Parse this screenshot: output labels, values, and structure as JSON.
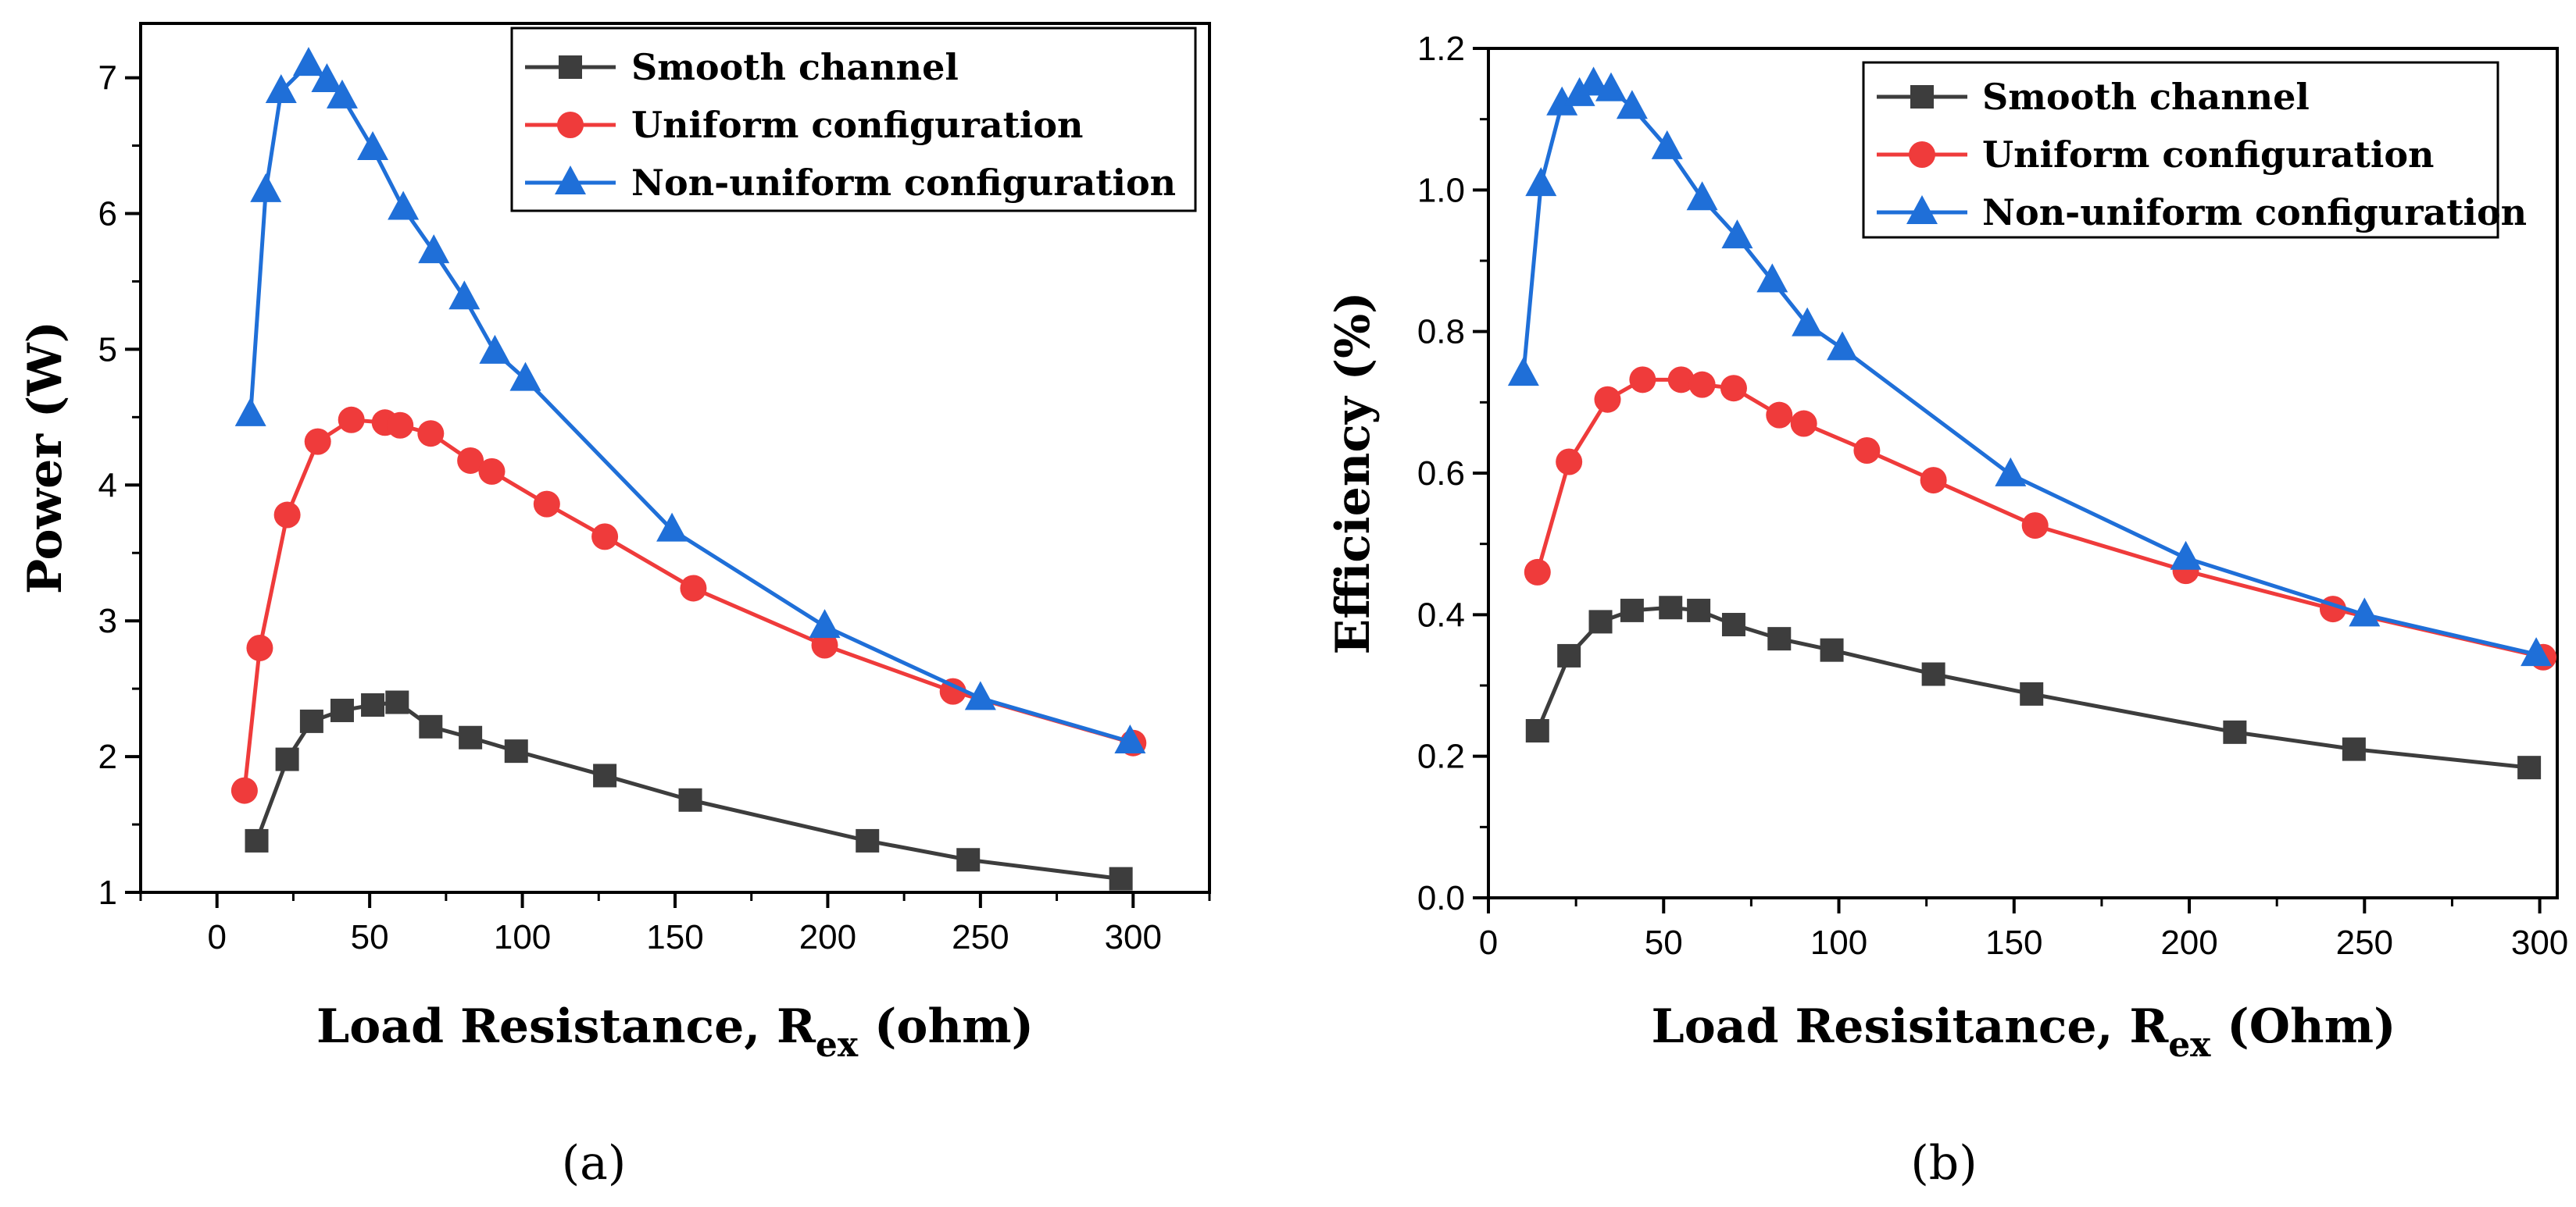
{
  "colors": {
    "smooth": "#3d3d3d",
    "uniform": "#ef3b3b",
    "nonuniform": "#1f6fd8"
  },
  "chart_data": [
    {
      "type": "line",
      "panel_label": "(a)",
      "title": "",
      "xlabel_main": "Load Resistance, R",
      "xlabel_sub": "ex",
      "xlabel_unit": " (ohm)",
      "ylabel": "Power (W)",
      "xlim": [
        -25,
        325
      ],
      "ylim": [
        1,
        7.4
      ],
      "xticks": [
        0,
        50,
        100,
        150,
        200,
        250,
        300
      ],
      "yticks": [
        1,
        2,
        3,
        4,
        5,
        6,
        7
      ],
      "xtick_labels": [
        "0",
        "50",
        "100",
        "150",
        "200",
        "250",
        "300"
      ],
      "ytick_labels": [
        "1",
        "2",
        "3",
        "4",
        "5",
        "6",
        "7"
      ],
      "legend_position": "top-right",
      "series": [
        {
          "name": "Smooth channel",
          "key": "smooth",
          "marker": "square",
          "x": [
            13,
            23,
            31,
            41,
            51,
            59,
            70,
            83,
            98,
            127,
            155,
            213,
            246,
            296
          ],
          "y": [
            1.38,
            1.98,
            2.26,
            2.34,
            2.38,
            2.4,
            2.22,
            2.14,
            2.04,
            1.86,
            1.68,
            1.38,
            1.24,
            1.1
          ]
        },
        {
          "name": "Uniform configuration",
          "key": "uniform",
          "marker": "circle",
          "x": [
            9,
            14,
            23,
            33,
            44,
            55,
            60,
            70,
            83,
            90,
            108,
            127,
            156,
            199,
            241,
            300
          ],
          "y": [
            1.75,
            2.8,
            3.78,
            4.32,
            4.48,
            4.46,
            4.44,
            4.38,
            4.18,
            4.1,
            3.86,
            3.62,
            3.24,
            2.82,
            2.48,
            2.1
          ]
        },
        {
          "name": "Non-uniform configuration",
          "key": "nonuniform",
          "marker": "triangle",
          "x": [
            11,
            16,
            21,
            30,
            36,
            41,
            51,
            61,
            71,
            81,
            91,
            101,
            149,
            199,
            250,
            299
          ],
          "y": [
            4.52,
            6.17,
            6.9,
            7.1,
            6.98,
            6.86,
            6.48,
            6.04,
            5.72,
            5.38,
            4.98,
            4.78,
            3.67,
            2.96,
            2.43,
            2.11
          ]
        }
      ]
    },
    {
      "type": "line",
      "panel_label": "(b)",
      "title": "",
      "xlabel_main": "Load Resisitance, R",
      "xlabel_sub": "ex",
      "xlabel_unit": " (Ohm)",
      "ylabel": "Efficiency (%)",
      "xlim": [
        0,
        305
      ],
      "ylim": [
        0,
        1.2
      ],
      "xticks": [
        0,
        50,
        100,
        150,
        200,
        250,
        300
      ],
      "yticks": [
        0,
        0.2,
        0.4,
        0.6,
        0.8,
        1.0,
        1.2
      ],
      "xtick_labels": [
        "0",
        "50",
        "100",
        "150",
        "200",
        "250",
        "300"
      ],
      "ytick_labels": [
        "0.0",
        "0.2",
        "0.4",
        "0.6",
        "0.8",
        "1.0",
        "1.2"
      ],
      "legend_position": "top-right",
      "series": [
        {
          "name": "Smooth channel",
          "key": "smooth",
          "marker": "square",
          "x": [
            14,
            23,
            32,
            41,
            52,
            60,
            70,
            83,
            98,
            127,
            155,
            213,
            247,
            297
          ],
          "y": [
            0.236,
            0.342,
            0.39,
            0.406,
            0.41,
            0.406,
            0.386,
            0.366,
            0.35,
            0.316,
            0.288,
            0.234,
            0.21,
            0.184
          ]
        },
        {
          "name": "Uniform configuration",
          "key": "uniform",
          "marker": "circle",
          "x": [
            14,
            23,
            34,
            44,
            55,
            61,
            70,
            83,
            90,
            108,
            127,
            156,
            199,
            241,
            301
          ],
          "y": [
            0.46,
            0.616,
            0.704,
            0.732,
            0.732,
            0.725,
            0.72,
            0.682,
            0.67,
            0.632,
            0.59,
            0.526,
            0.462,
            0.408,
            0.34
          ]
        },
        {
          "name": "Non-uniform configuration",
          "key": "nonuniform",
          "marker": "triangle",
          "x": [
            10,
            15,
            21,
            26,
            30,
            35,
            41,
            51,
            61,
            71,
            81,
            91,
            101,
            149,
            199,
            250,
            299
          ],
          "y": [
            0.74,
            1.008,
            1.122,
            1.135,
            1.15,
            1.142,
            1.117,
            1.06,
            0.988,
            0.934,
            0.872,
            0.81,
            0.776,
            0.598,
            0.48,
            0.4,
            0.344
          ]
        }
      ]
    }
  ]
}
